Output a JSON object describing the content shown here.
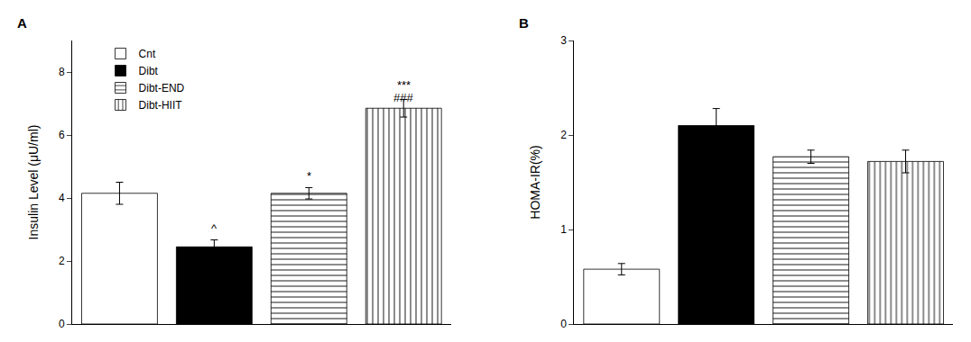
{
  "chart_data": [
    {
      "type": "bar",
      "title": "A",
      "categories": [
        null,
        null,
        null,
        null
      ],
      "ylabel": "Insulin Level (μU/ml)",
      "ylim": [
        0,
        9
      ],
      "yticks": [
        0,
        2,
        4,
        6,
        8
      ],
      "grid": false,
      "tick_labels": "y",
      "legend": "upper left",
      "series": [
        {
          "name": "Cnt",
          "color": "white",
          "marker": "none",
          "values": [
            4.15,
            null,
            null,
            null
          ],
          "errors": [
            0.35,
            null,
            null,
            null
          ]
        },
        {
          "name": "Dibt",
          "color": "black",
          "marker": "solid",
          "values": [
            null,
            2.45,
            null,
            null
          ],
          "errors": [
            null,
            0.22,
            null,
            null
          ]
        },
        {
          "name": "Dibt-END",
          "color": "white",
          "marker": "horizontal",
          "values": [
            null,
            null,
            4.15,
            null
          ],
          "errors": [
            null,
            null,
            0.18,
            null
          ]
        },
        {
          "name": "Dibt-HIIT",
          "color": "white",
          "marker": "vertical",
          "values": [
            null,
            null,
            null,
            6.85
          ],
          "errors": [
            null,
            null,
            null,
            0.28
          ]
        }
      ],
      "annotations": [
        {
          "text": "^",
          "x": 1,
          "y": 2.78
        },
        {
          "text": "*",
          "x": 2,
          "y": 4.42
        },
        {
          "text": "***",
          "x": 3,
          "y": 7.32
        },
        {
          "text": "###",
          "x": 3,
          "y": 6.92
        }
      ]
    },
    {
      "type": "bar",
      "title": "B",
      "categories": [
        null,
        null,
        null,
        null
      ],
      "ylabel": "HOMA-IR(%)",
      "ylim": [
        0,
        3
      ],
      "yticks": [
        0,
        1,
        2,
        3
      ],
      "grid": false,
      "tick_labels": "y",
      "legend": "none",
      "series": [
        {
          "name": "Cnt",
          "color": "white",
          "marker": "none",
          "values": [
            0.58,
            null,
            null,
            null
          ],
          "errors": [
            0.06,
            null,
            null,
            null
          ]
        },
        {
          "name": "Dibt",
          "color": "black",
          "marker": "solid",
          "values": [
            null,
            2.1,
            null,
            null
          ],
          "errors": [
            null,
            0.18,
            null,
            null
          ]
        },
        {
          "name": "Dibt-END",
          "color": "white",
          "marker": "horizontal",
          "values": [
            null,
            null,
            1.77,
            null
          ],
          "errors": [
            null,
            null,
            0.07,
            null
          ]
        },
        {
          "name": "Dibt-HIIT",
          "color": "white",
          "marker": "vertical",
          "values": [
            null,
            null,
            null,
            1.72
          ],
          "errors": [
            null,
            null,
            null,
            0.12
          ]
        }
      ]
    }
  ]
}
